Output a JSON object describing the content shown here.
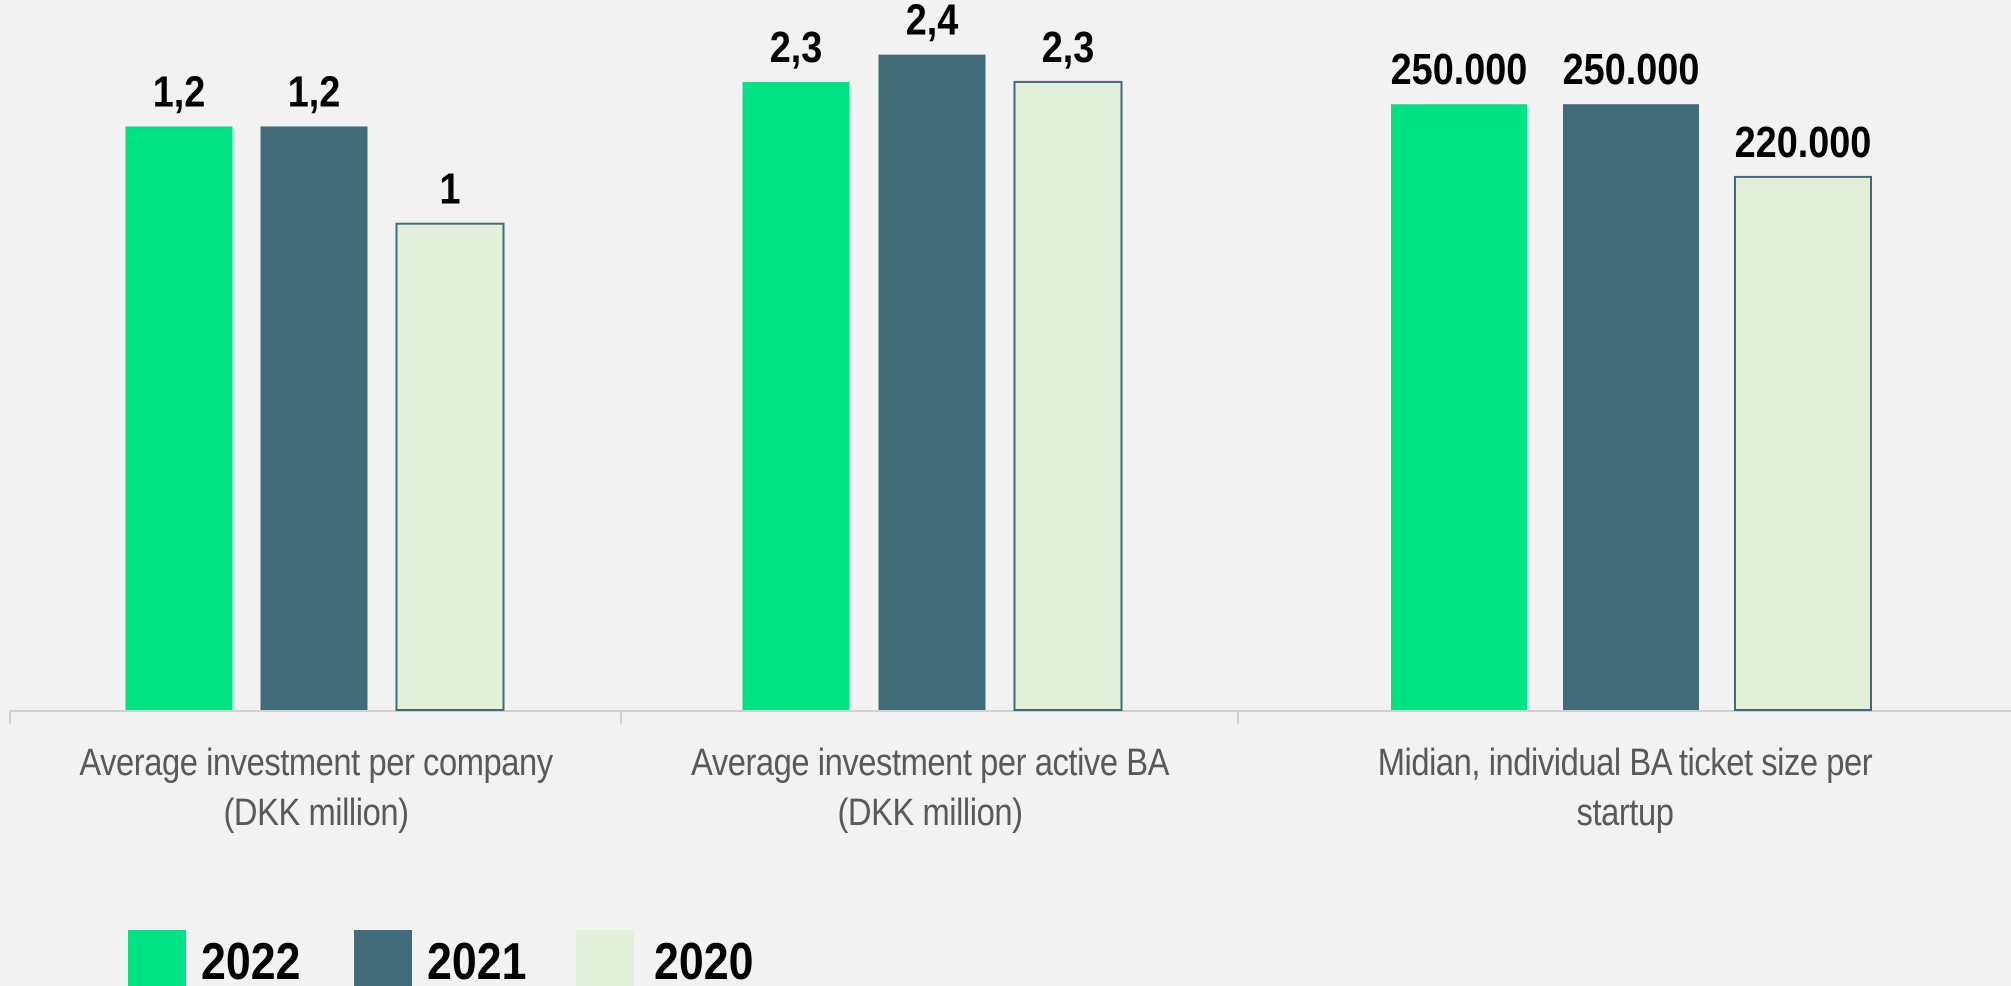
{
  "chart_data": {
    "type": "bar",
    "categories": [
      "Average investment per company\n(DKK million)",
      "Average investment per active BA\n(DKK million)",
      "Midian, individual BA ticket size per startup"
    ],
    "series": [
      {
        "name": "2022",
        "color": "#00e383",
        "values": [
          1.2,
          2.3,
          250000
        ],
        "value_labels": [
          "1,2",
          "2,3",
          "250.000"
        ]
      },
      {
        "name": "2021",
        "color": "#426b7a",
        "values": [
          1.2,
          2.4,
          250000
        ],
        "value_labels": [
          "1,2",
          "2,4",
          "250.000"
        ]
      },
      {
        "name": "2020",
        "color": "#e2efd9",
        "values": [
          1,
          2.3,
          220000
        ],
        "value_labels": [
          "1",
          "2,3",
          "220.000"
        ]
      }
    ],
    "ylim": [
      [
        0,
        1.46
      ],
      [
        0,
        2.6
      ],
      [
        0,
        293000
      ]
    ]
  }
}
